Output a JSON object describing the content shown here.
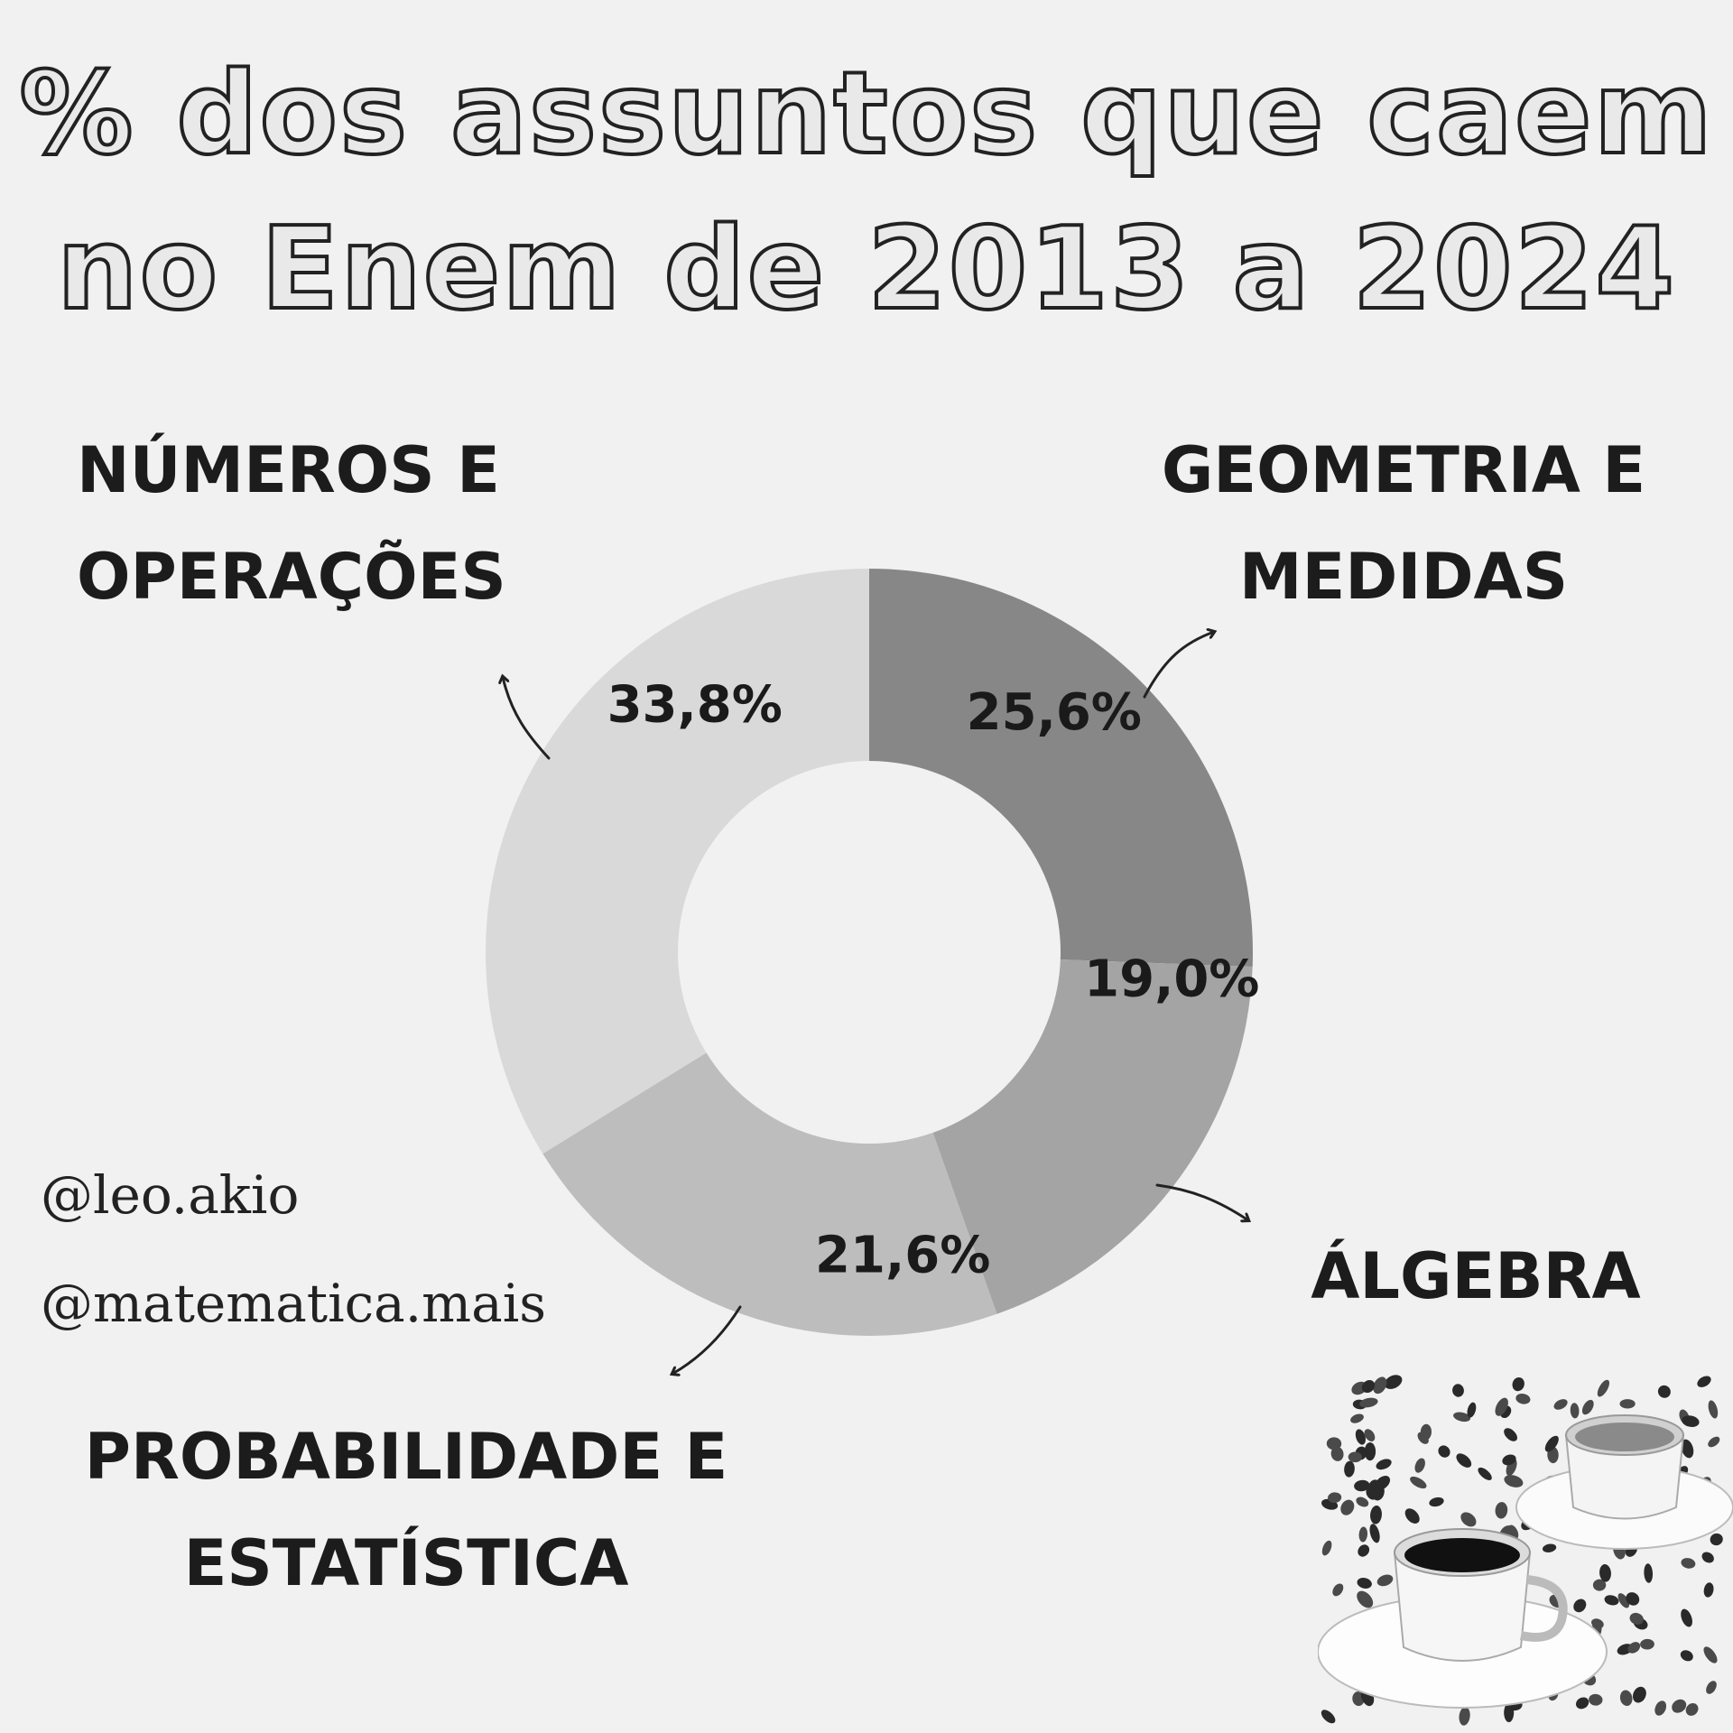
{
  "title": {
    "line1": "% dos assuntos que caem",
    "line2": "no Enem de 2013 a 2024"
  },
  "chart_data": {
    "type": "pie",
    "categories": [
      "Geometria e Medidas",
      "Álgebra",
      "Probabilidade e Estatística",
      "Números e Operações"
    ],
    "values": [
      25.6,
      19.0,
      21.6,
      33.8
    ],
    "data_labels": [
      "25,6%",
      "19,0%",
      "21,6%",
      "33,8%"
    ],
    "colors": [
      "#878787",
      "#a4a4a4",
      "#bdbdbd",
      "#d9d9d9"
    ],
    "donut": true
  },
  "labels": {
    "numeros": [
      "NÚMEROS E",
      "OPERAÇÕES"
    ],
    "geometria": [
      "GEOMETRIA E",
      "MEDIDAS"
    ],
    "algebra": [
      "ÁLGEBRA"
    ],
    "probabilidade": [
      "PROBABILIDADE E",
      "ESTATÍSTICA"
    ]
  },
  "handles": [
    "@leo.akio",
    "@matematica.mais"
  ]
}
